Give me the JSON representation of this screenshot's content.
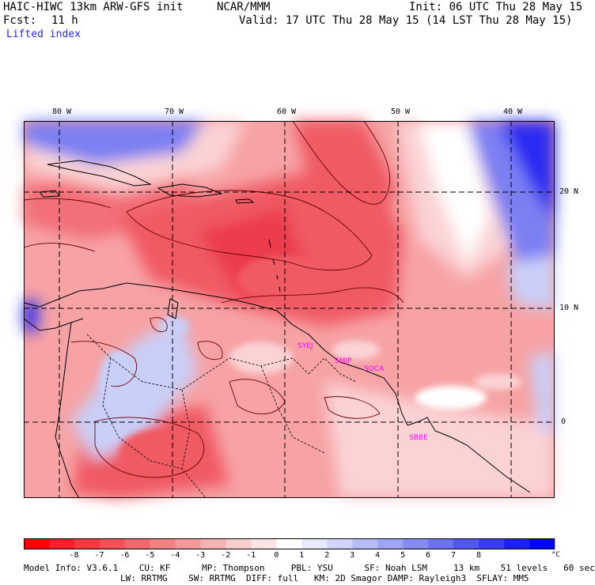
{
  "header": {
    "model_title": "HAIC-HIWC 13km ARW-GFS init",
    "org": "NCAR/MMM",
    "init": "Init: 06 UTC Thu 28 May 15",
    "fcst_label": "Fcst:",
    "fcst_value": "11 h",
    "valid": "Valid: 17 UTC Thu 28 May 15 (14 LST Thu 28 May 15)",
    "field": "Lifted index"
  },
  "map": {
    "lon_labels": [
      "80 W",
      "70 W",
      "60 W",
      "50 W",
      "40 W"
    ],
    "lat_labels": [
      "20 N",
      "10 N",
      "0"
    ],
    "stations": [
      "SYEJ",
      "SMJP",
      "SOCA",
      "SBBE"
    ],
    "colors": {
      "deep_red": "#e8223a",
      "red": "#f05a64",
      "light_red": "#f7a3a6",
      "pale_red": "#fbd3d4",
      "white": "#ffffff",
      "pale_blue": "#c9cff8",
      "blue": "#7b7ff2",
      "deep_blue": "#2b2bf2",
      "contour": "#6b0000",
      "station": "#ff00ff",
      "header_blue": "#2b2bd0"
    }
  },
  "colorbar": {
    "labels": [
      "-8",
      "-7",
      "-6",
      "-5",
      "-4",
      "-3",
      "-2",
      "-1",
      "0",
      "1",
      "2",
      "3",
      "4",
      "5",
      "6",
      "7",
      "8"
    ],
    "unit": "°C",
    "colors": [
      "#ff0000",
      "#f81f2d",
      "#f6383f",
      "#f45055",
      "#f3686c",
      "#f38184",
      "#f49a9c",
      "#f6b3b5",
      "#f8cdcf",
      "#fbe4e5",
      "#ffffff",
      "#e9ebfd",
      "#d2d5fb",
      "#b8bdf8",
      "#9fa4f6",
      "#868bf4",
      "#6c71f2",
      "#5156f0",
      "#373cf0",
      "#1d22ef",
      "#0000ff"
    ]
  },
  "footer": {
    "line1": "Model Info: V3.6.1    CU: KF      MP: Thompson     PBL: YSU      SF: Noah LSM     13 km    51 levels   60 sec",
    "line2": "LW: RRTMG    SW: RRTMG  DIFF: full   KM: 2D Smagor DAMP: Rayleigh3  SFLAY: MM5"
  }
}
